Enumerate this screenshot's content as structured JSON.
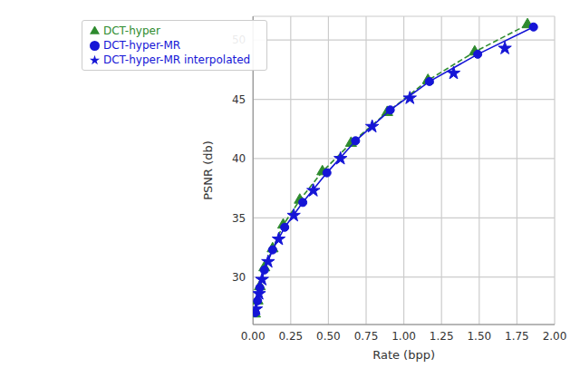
{
  "chart_data": {
    "type": "line",
    "x_label": "Rate (bpp)",
    "y_label": "PSNR (db)",
    "xlim": [
      0,
      2
    ],
    "ylim": [
      26,
      52
    ],
    "xticks": [
      {
        "value": 0,
        "label": "0.00"
      },
      {
        "value": 0.25,
        "label": "0.25"
      },
      {
        "value": 0.5,
        "label": "0.50"
      },
      {
        "value": 0.75,
        "label": "0.75"
      },
      {
        "value": 1,
        "label": "1.00"
      },
      {
        "value": 1.25,
        "label": "1.25"
      },
      {
        "value": 1.5,
        "label": "1.50"
      },
      {
        "value": 1.75,
        "label": "1.75"
      },
      {
        "value": 2,
        "label": "2.00"
      }
    ],
    "yticks": [
      30,
      35,
      40,
      45,
      50
    ],
    "grid": true,
    "legend": "upper left",
    "series": [
      {
        "name": "DCT-hyper",
        "color": "#2e8b2e",
        "marker": "triangle",
        "line_style": "dashed",
        "x": [
          0.013,
          0.03,
          0.045,
          0.075,
          0.13,
          0.2,
          0.31,
          0.46,
          0.65,
          0.89,
          1.16,
          1.47,
          1.82
        ],
        "values": [
          26.9,
          28.0,
          29.2,
          30.8,
          32.4,
          34.4,
          36.5,
          38.9,
          41.3,
          43.9,
          46.6,
          49.0,
          51.3
        ]
      },
      {
        "name": "DCT-hyper-MR",
        "color": "#1515d6",
        "marker": "circle",
        "line_style": "solid",
        "x": [
          0.015,
          0.03,
          0.045,
          0.075,
          0.13,
          0.21,
          0.33,
          0.49,
          0.68,
          0.91,
          1.17,
          1.49,
          1.86
        ],
        "values": [
          27.0,
          28.0,
          29.1,
          30.6,
          32.3,
          34.2,
          36.3,
          38.8,
          41.5,
          44.1,
          46.5,
          48.8,
          51.1
        ]
      },
      {
        "name": "DCT-hyper-MR interpolated",
        "color": "#1515d6",
        "marker": "star",
        "line_style": "none",
        "x": [
          0.02,
          0.04,
          0.06,
          0.1,
          0.17,
          0.27,
          0.4,
          0.58,
          0.79,
          1.04,
          1.33,
          1.67
        ],
        "values": [
          27.3,
          28.6,
          29.8,
          31.3,
          33.2,
          35.2,
          37.3,
          40.0,
          42.7,
          45.1,
          47.2,
          49.3
        ]
      }
    ]
  }
}
